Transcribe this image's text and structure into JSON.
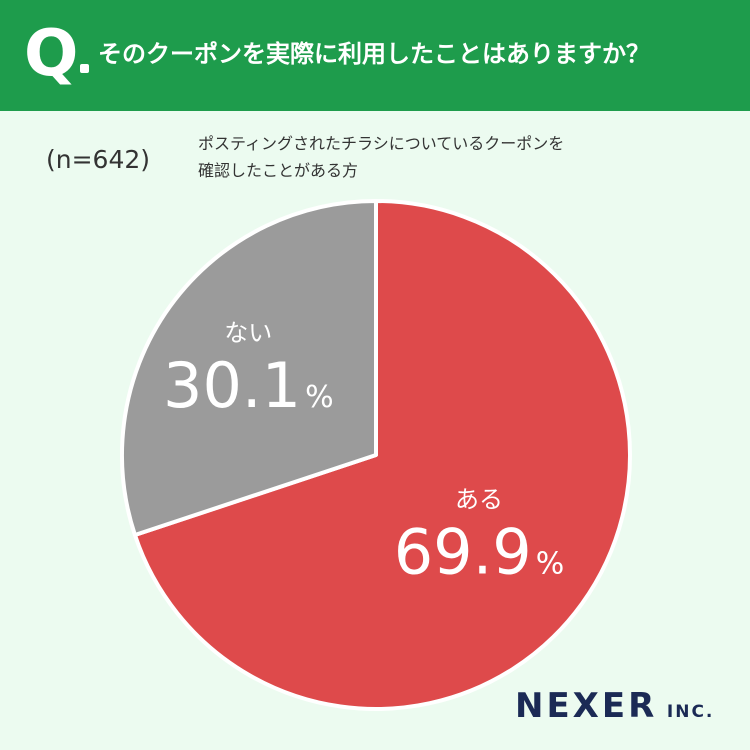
{
  "header": {
    "q_label": "Q",
    "question": "そのクーポンを実際に利用したことはありますか？"
  },
  "sample": "(n=642)",
  "target": {
    "line1": "ポスティングされたチラシについているクーポンを",
    "line2": "確認したことがある方"
  },
  "brand": {
    "name": "NEXER",
    "suffix": "INC."
  },
  "colors": {
    "header_bg": "#1e9c4c",
    "background": "#ecfbf0",
    "slice_yes": "#de4a4b",
    "slice_no": "#9b9b9b",
    "brand": "#1b2a55"
  },
  "chart_data": {
    "type": "pie",
    "slices": [
      {
        "label": "ある",
        "value": 69.9,
        "display": "69.9",
        "unit": "%",
        "color": "#de4a4b"
      },
      {
        "label": "ない",
        "value": 30.1,
        "display": "30.1",
        "unit": "%",
        "color": "#9b9b9b"
      }
    ],
    "start": "12 o'clock",
    "direction": "clockwise"
  }
}
